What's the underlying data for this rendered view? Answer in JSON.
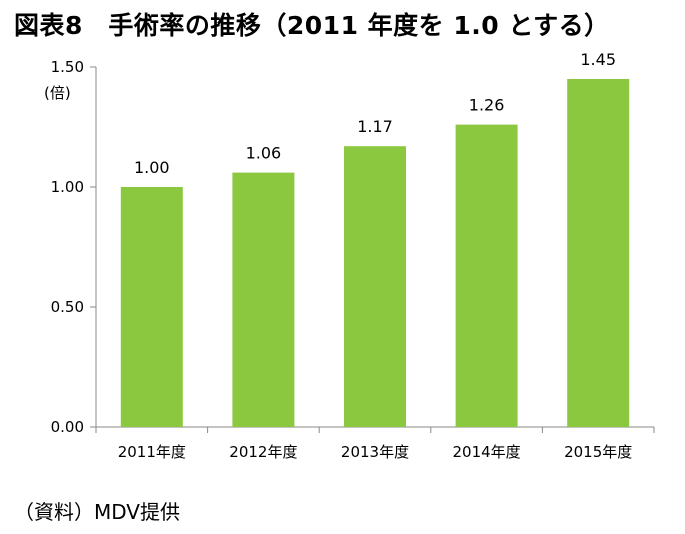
{
  "figure": {
    "title": "図表8　手術率の推移（2011 年度を 1.0 とする）",
    "source": "（資料）MDV提供"
  },
  "chart_data": {
    "type": "bar",
    "title": "図表8　手術率の推移（2011 年度を 1.0 とする）",
    "categories": [
      "2011年度",
      "2012年度",
      "2013年度",
      "2014年度",
      "2015年度"
    ],
    "values": [
      1.0,
      1.06,
      1.17,
      1.26,
      1.45
    ],
    "data_labels": [
      "1.00",
      "1.06",
      "1.17",
      "1.26",
      "1.45"
    ],
    "xlabel": "",
    "ylabel": "(倍)",
    "ylim": [
      0,
      1.5
    ],
    "yticks": [
      0,
      0.5,
      1.0,
      1.5
    ],
    "ytick_labels": [
      "0.00",
      "0.50",
      "1.00",
      "1.50"
    ],
    "grid": false,
    "legend": "none",
    "bar_color": "#8cc83f",
    "axis_color": "#888888"
  }
}
